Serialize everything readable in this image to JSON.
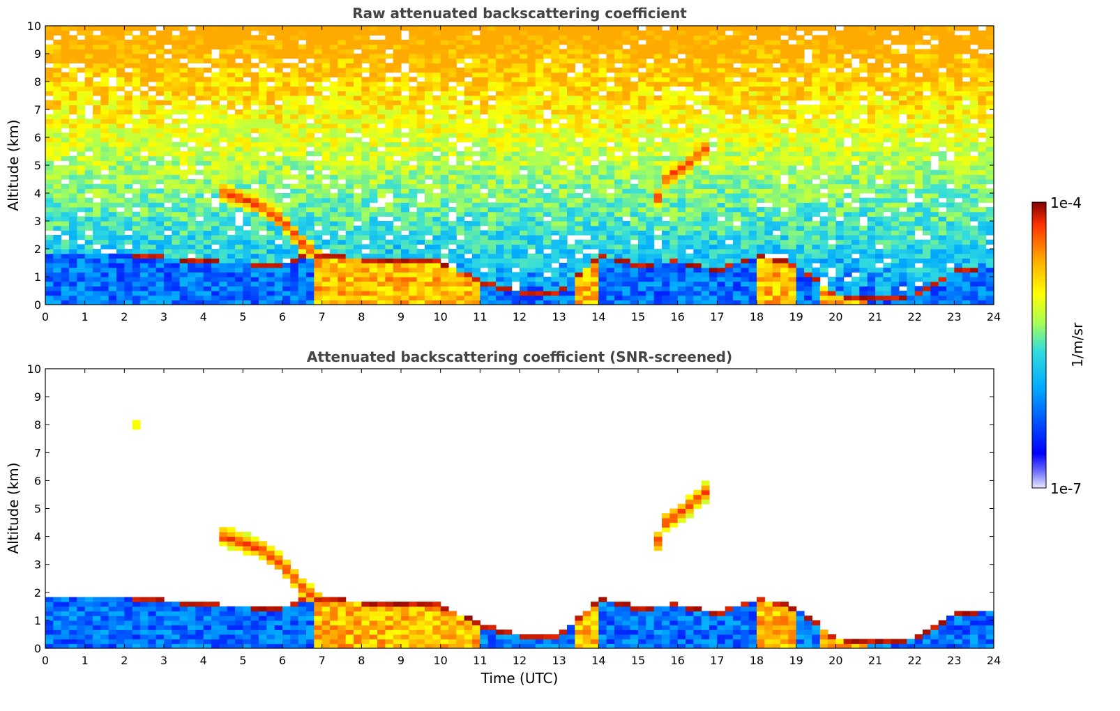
{
  "chart_data": [
    {
      "type": "heatmap",
      "title": "Raw attenuated backscattering coefficient",
      "xlabel": "",
      "ylabel": "Altitude (km)",
      "xlim": [
        0,
        24
      ],
      "ylim": [
        0,
        10
      ],
      "xticks": [
        "0",
        "1",
        "2",
        "3",
        "4",
        "5",
        "6",
        "7",
        "8",
        "9",
        "10",
        "11",
        "12",
        "13",
        "14",
        "15",
        "16",
        "17",
        "18",
        "19",
        "20",
        "21",
        "22",
        "23",
        "24"
      ],
      "yticks": [
        "0",
        "1",
        "2",
        "3",
        "4",
        "5",
        "6",
        "7",
        "8",
        "9",
        "10"
      ],
      "features": [
        {
          "kind": "boundary_layer",
          "x": [
            0,
            2,
            4,
            6,
            6.7,
            8,
            9,
            10,
            11,
            12,
            13,
            14,
            15,
            16,
            17,
            18,
            19,
            20,
            21,
            22,
            23,
            24
          ],
          "top_km": [
            1.9,
            1.9,
            1.6,
            1.5,
            1.9,
            1.7,
            1.7,
            1.6,
            0.9,
            0.5,
            0.5,
            1.8,
            1.5,
            1.6,
            1.3,
            1.8,
            1.5,
            0.4,
            0.3,
            0.4,
            1.3,
            1.4
          ]
        },
        {
          "kind": "cloud_layer",
          "x": [
            4.5,
            5,
            5.5,
            6,
            6.5,
            7
          ],
          "altitude_km": [
            4.0,
            3.8,
            3.5,
            3.0,
            2.2,
            1.6
          ]
        },
        {
          "kind": "cloud_layer",
          "x": [
            15.4,
            15.7,
            16,
            16.3,
            16.7
          ],
          "altitude_km": [
            3.5,
            4.5,
            4.8,
            5.1,
            5.6
          ]
        },
        {
          "kind": "elevated_patch",
          "x": [
            2.25
          ],
          "altitude_km": [
            8.0
          ]
        }
      ]
    },
    {
      "type": "heatmap",
      "title": "Attenuated backscattering coefficient (SNR-screened)",
      "xlabel": "Time (UTC)",
      "ylabel": "Altitude (km)",
      "xlim": [
        0,
        24
      ],
      "ylim": [
        0,
        10
      ],
      "xticks": [
        "0",
        "1",
        "2",
        "3",
        "4",
        "5",
        "6",
        "7",
        "8",
        "9",
        "10",
        "11",
        "12",
        "13",
        "14",
        "15",
        "16",
        "17",
        "18",
        "19",
        "20",
        "21",
        "22",
        "23",
        "24"
      ],
      "yticks": [
        "0",
        "1",
        "2",
        "3",
        "4",
        "5",
        "6",
        "7",
        "8",
        "9",
        "10"
      ]
    }
  ],
  "colorbar": {
    "max_label": "1e-4",
    "min_label": "1e-7",
    "unit_label": "1/m/sr",
    "scale": "log",
    "colors": [
      "#e8e8ff",
      "#0000ff",
      "#00aaff",
      "#33dddd",
      "#aaff55",
      "#ffff00",
      "#ffaa00",
      "#ff3300",
      "#800000"
    ]
  }
}
